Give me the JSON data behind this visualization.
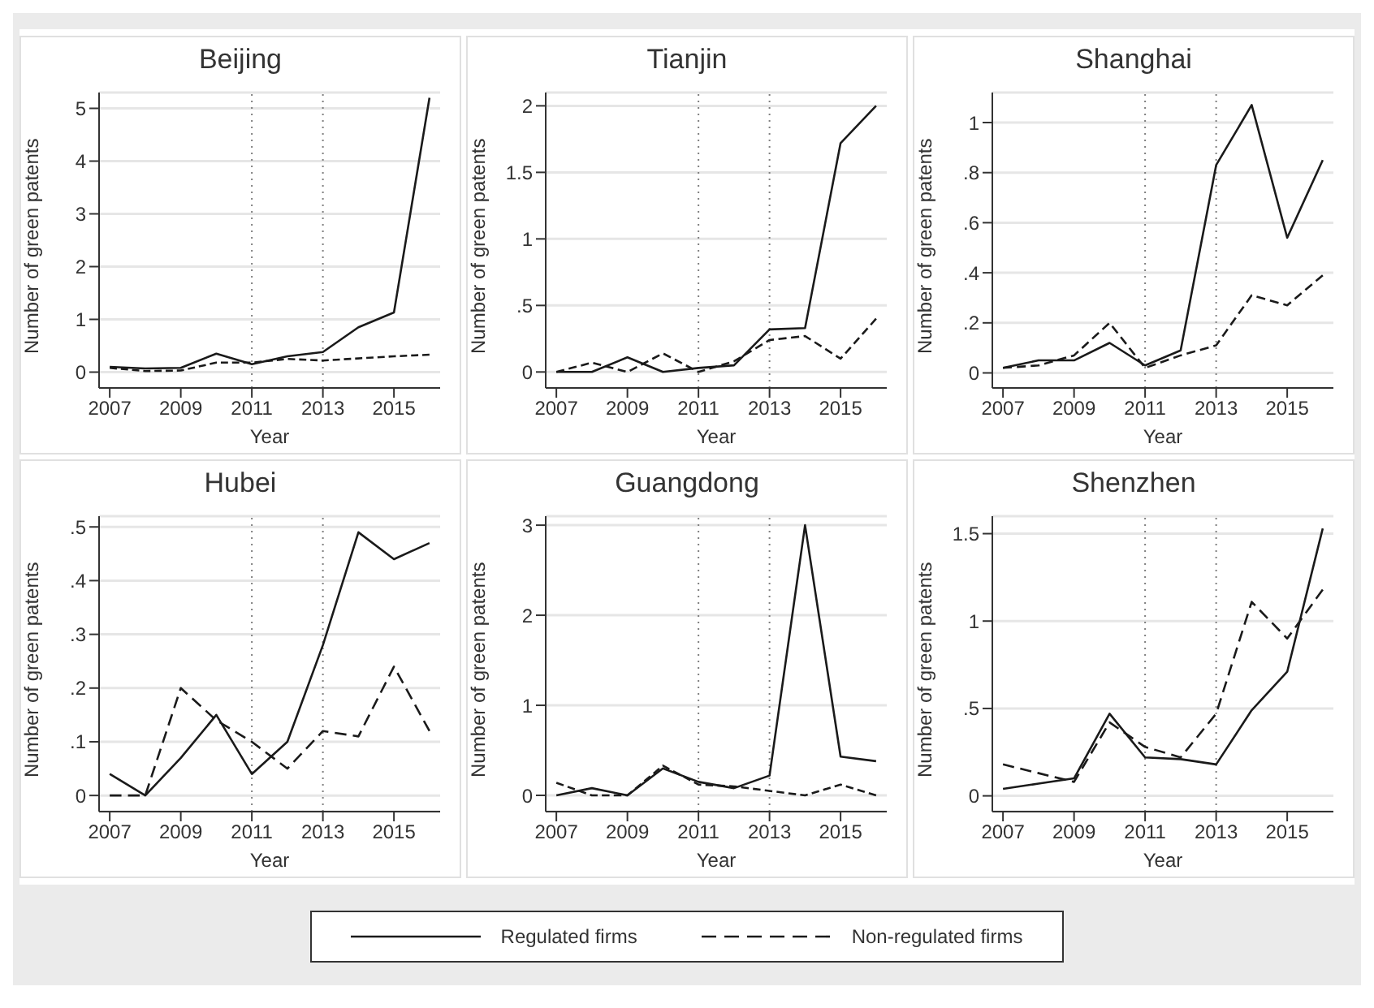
{
  "chart_data": [
    {
      "type": "line",
      "title": "Beijing",
      "xlabel": "Year",
      "ylabel": "Number of green patents",
      "x": [
        2007,
        2008,
        2009,
        2010,
        2011,
        2012,
        2013,
        2014,
        2015,
        2016
      ],
      "xlim": [
        2006.7,
        2016.3
      ],
      "xticks": [
        2007,
        2009,
        2011,
        2013,
        2015
      ],
      "ylim": [
        -0.3,
        5.3
      ],
      "yticks": [
        0,
        1,
        2,
        3,
        4,
        5
      ],
      "grid": "y",
      "legend": "bottom",
      "marker": "none",
      "ref_lines": [
        {
          "axis": "x",
          "value": 2011,
          "color": "#808080",
          "line_style": "dotted"
        },
        {
          "axis": "x",
          "value": 2013,
          "color": "#808080",
          "line_style": "dotted"
        }
      ],
      "series": [
        {
          "name": "Regulated firms",
          "color": "#1a1a1a",
          "line_style": "solid",
          "values": [
            0.1,
            0.07,
            0.08,
            0.35,
            0.15,
            0.3,
            0.38,
            0.85,
            1.13,
            5.2
          ]
        },
        {
          "name": "Non-regulated firms",
          "color": "#1a1a1a",
          "line_style": "dashed",
          "values": [
            0.08,
            0.02,
            0.03,
            0.18,
            0.18,
            0.25,
            0.22,
            0.26,
            0.3,
            0.33
          ]
        }
      ]
    },
    {
      "type": "line",
      "title": "Tianjin",
      "xlabel": "Year",
      "ylabel": "Number of green patents",
      "x": [
        2007,
        2008,
        2009,
        2010,
        2011,
        2012,
        2013,
        2014,
        2015,
        2016
      ],
      "xlim": [
        2006.7,
        2016.3
      ],
      "xticks": [
        2007,
        2009,
        2011,
        2013,
        2015
      ],
      "ylim": [
        -0.12,
        2.1
      ],
      "yticks": [
        0,
        {
          "value": 0.5,
          "label": ".5"
        },
        1,
        1.5,
        2
      ],
      "grid": "y",
      "marker": "none",
      "ref_lines": [
        {
          "axis": "x",
          "value": 2011,
          "color": "#808080",
          "line_style": "dotted"
        },
        {
          "axis": "x",
          "value": 2013,
          "color": "#808080",
          "line_style": "dotted"
        }
      ],
      "series": [
        {
          "color": "#1a1a1a",
          "line_style": "solid",
          "values": [
            0,
            0,
            0.11,
            0,
            0.03,
            0.05,
            0.32,
            0.33,
            1.72,
            2.0
          ]
        },
        {
          "color": "#1a1a1a",
          "line_style": "dashed",
          "values": [
            0,
            0.07,
            0,
            0.14,
            0,
            0.08,
            0.24,
            0.27,
            0.1,
            0.4
          ]
        }
      ]
    },
    {
      "type": "line",
      "title": "Shanghai",
      "xlabel": "Year",
      "ylabel": "Number of green patents",
      "x": [
        2007,
        2008,
        2009,
        2010,
        2011,
        2012,
        2013,
        2014,
        2015,
        2016
      ],
      "xlim": [
        2006.7,
        2016.3
      ],
      "xticks": [
        2007,
        2009,
        2011,
        2013,
        2015
      ],
      "ylim": [
        -0.06,
        1.12
      ],
      "yticks": [
        0,
        {
          "value": 0.2,
          "label": ".2"
        },
        {
          "value": 0.4,
          "label": ".4"
        },
        {
          "value": 0.6,
          "label": ".6"
        },
        {
          "value": 0.8,
          "label": ".8"
        },
        1
      ],
      "grid": "y",
      "marker": "none",
      "ref_lines": [
        {
          "axis": "x",
          "value": 2011,
          "color": "#808080",
          "line_style": "dotted"
        },
        {
          "axis": "x",
          "value": 2013,
          "color": "#808080",
          "line_style": "dotted"
        }
      ],
      "series": [
        {
          "color": "#1a1a1a",
          "line_style": "solid",
          "values": [
            0.02,
            0.05,
            0.05,
            0.12,
            0.03,
            0.09,
            0.83,
            1.07,
            0.54,
            0.85
          ]
        },
        {
          "color": "#1a1a1a",
          "line_style": "dashed",
          "values": [
            0.02,
            0.03,
            0.07,
            0.2,
            0.02,
            0.07,
            0.11,
            0.31,
            0.27,
            0.39
          ]
        }
      ]
    },
    {
      "type": "line",
      "title": "Hubei",
      "xlabel": "Year",
      "ylabel": "Number of green patents",
      "x": [
        2007,
        2008,
        2009,
        2010,
        2011,
        2012,
        2013,
        2014,
        2015,
        2016
      ],
      "xlim": [
        2006.7,
        2016.3
      ],
      "xticks": [
        2007,
        2009,
        2011,
        2013,
        2015
      ],
      "ylim": [
        -0.03,
        0.52
      ],
      "yticks": [
        0,
        {
          "value": 0.1,
          "label": ".1"
        },
        {
          "value": 0.2,
          "label": ".2"
        },
        {
          "value": 0.3,
          "label": ".3"
        },
        {
          "value": 0.4,
          "label": ".4"
        },
        {
          "value": 0.5,
          "label": ".5"
        }
      ],
      "grid": "y",
      "marker": "none",
      "ref_lines": [
        {
          "axis": "x",
          "value": 2011,
          "color": "#808080",
          "line_style": "dotted"
        },
        {
          "axis": "x",
          "value": 2013,
          "color": "#808080",
          "line_style": "dotted"
        }
      ],
      "series": [
        {
          "color": "#1a1a1a",
          "line_style": "solid",
          "values": [
            0.04,
            0,
            0.07,
            0.15,
            0.04,
            0.1,
            0.28,
            0.49,
            0.44,
            0.47
          ]
        },
        {
          "color": "#1a1a1a",
          "line_style": "dashed",
          "values": [
            0,
            0,
            0.2,
            0.14,
            0.1,
            0.05,
            0.12,
            0.11,
            0.24,
            0.12
          ]
        }
      ]
    },
    {
      "type": "line",
      "title": "Guangdong",
      "xlabel": "Year",
      "ylabel": "Number of green patents",
      "x": [
        2007,
        2008,
        2009,
        2010,
        2011,
        2012,
        2013,
        2014,
        2015,
        2016
      ],
      "xlim": [
        2006.7,
        2016.3
      ],
      "xticks": [
        2007,
        2009,
        2011,
        2013,
        2015
      ],
      "ylim": [
        -0.18,
        3.1
      ],
      "yticks": [
        0,
        1,
        2,
        3
      ],
      "grid": "y",
      "marker": "none",
      "ref_lines": [
        {
          "axis": "x",
          "value": 2011,
          "color": "#808080",
          "line_style": "dotted"
        },
        {
          "axis": "x",
          "value": 2013,
          "color": "#808080",
          "line_style": "dotted"
        }
      ],
      "series": [
        {
          "color": "#1a1a1a",
          "line_style": "solid",
          "values": [
            0,
            0.08,
            0,
            0.3,
            0.15,
            0.08,
            0.22,
            3.0,
            0.43,
            0.38
          ]
        },
        {
          "color": "#1a1a1a",
          "line_style": "dashed",
          "values": [
            0.14,
            0,
            0,
            0.33,
            0.12,
            0.1,
            0.05,
            0,
            0.12,
            0
          ]
        }
      ]
    },
    {
      "type": "line",
      "title": "Shenzhen",
      "xlabel": "Year",
      "ylabel": "Number of green patents",
      "x": [
        2007,
        2008,
        2009,
        2010,
        2011,
        2012,
        2013,
        2014,
        2015,
        2016
      ],
      "xlim": [
        2006.7,
        2016.3
      ],
      "xticks": [
        2007,
        2009,
        2011,
        2013,
        2015
      ],
      "ylim": [
        -0.09,
        1.6
      ],
      "yticks": [
        0,
        {
          "value": 0.5,
          "label": ".5"
        },
        1,
        1.5
      ],
      "grid": "y",
      "marker": "none",
      "ref_lines": [
        {
          "axis": "x",
          "value": 2011,
          "color": "#808080",
          "line_style": "dotted"
        },
        {
          "axis": "x",
          "value": 2013,
          "color": "#808080",
          "line_style": "dotted"
        }
      ],
      "series": [
        {
          "color": "#1a1a1a",
          "line_style": "solid",
          "values": [
            0.04,
            0.07,
            0.1,
            0.47,
            0.22,
            0.21,
            0.18,
            0.49,
            0.71,
            1.53
          ]
        },
        {
          "color": "#1a1a1a",
          "line_style": "dashed",
          "values": [
            0.18,
            0.13,
            0.08,
            0.42,
            0.28,
            0.22,
            0.47,
            1.11,
            0.9,
            1.18
          ]
        }
      ]
    }
  ]
}
